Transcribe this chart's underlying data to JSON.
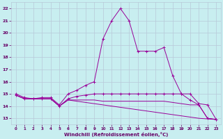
{
  "xlabel": "Windchill (Refroidissement éolien,°C)",
  "bg_color": "#c8eef0",
  "grid_color": "#b8c8d8",
  "line_color": "#990099",
  "ylim": [
    12.5,
    22.5
  ],
  "xlim": [
    -0.5,
    23.5
  ],
  "yticks": [
    13,
    14,
    15,
    16,
    17,
    18,
    19,
    20,
    21,
    22
  ],
  "xticks": [
    0,
    1,
    2,
    3,
    4,
    5,
    6,
    7,
    8,
    9,
    10,
    11,
    12,
    13,
    14,
    15,
    16,
    17,
    18,
    19,
    20,
    21,
    22,
    23
  ],
  "series1_x": [
    0,
    1,
    2,
    3,
    4,
    5,
    6,
    7,
    8,
    9,
    10,
    11,
    12,
    13,
    14,
    15,
    16,
    17,
    18,
    19,
    20,
    21,
    22,
    23
  ],
  "series1_y": [
    15.0,
    14.7,
    14.6,
    14.7,
    14.7,
    14.1,
    15.0,
    15.3,
    15.7,
    16.0,
    19.5,
    21.0,
    22.0,
    21.0,
    18.5,
    18.5,
    18.5,
    18.8,
    16.5,
    15.0,
    15.0,
    14.2,
    14.1,
    12.9
  ],
  "series2_x": [
    0,
    1,
    2,
    3,
    4,
    5,
    6,
    7,
    8,
    9,
    10,
    11,
    12,
    13,
    14,
    15,
    16,
    17,
    18,
    19,
    20,
    21,
    22,
    23
  ],
  "series2_y": [
    14.9,
    14.6,
    14.6,
    14.6,
    14.6,
    14.0,
    14.6,
    14.8,
    14.9,
    15.0,
    15.0,
    15.0,
    15.0,
    15.0,
    15.0,
    15.0,
    15.0,
    15.0,
    15.0,
    15.0,
    14.5,
    14.1,
    13.0,
    12.9
  ],
  "series3_x": [
    0,
    1,
    2,
    3,
    4,
    5,
    6,
    7,
    8,
    9,
    10,
    11,
    12,
    13,
    14,
    15,
    16,
    17,
    18,
    19,
    20,
    21,
    22,
    23
  ],
  "series3_y": [
    14.9,
    14.6,
    14.6,
    14.6,
    14.6,
    14.0,
    14.5,
    14.4,
    14.3,
    14.2,
    14.1,
    14.0,
    13.9,
    13.8,
    13.7,
    13.6,
    13.5,
    13.4,
    13.3,
    13.2,
    13.1,
    13.0,
    12.95,
    12.9
  ],
  "series4_x": [
    0,
    1,
    2,
    3,
    4,
    5,
    6,
    7,
    8,
    9,
    10,
    11,
    12,
    13,
    14,
    15,
    16,
    17,
    18,
    19,
    20,
    21,
    22,
    23
  ],
  "series4_y": [
    14.9,
    14.6,
    14.6,
    14.6,
    14.6,
    14.0,
    14.5,
    14.5,
    14.5,
    14.5,
    14.4,
    14.4,
    14.4,
    14.4,
    14.4,
    14.4,
    14.4,
    14.4,
    14.3,
    14.2,
    14.1,
    14.1,
    13.0,
    12.9
  ]
}
